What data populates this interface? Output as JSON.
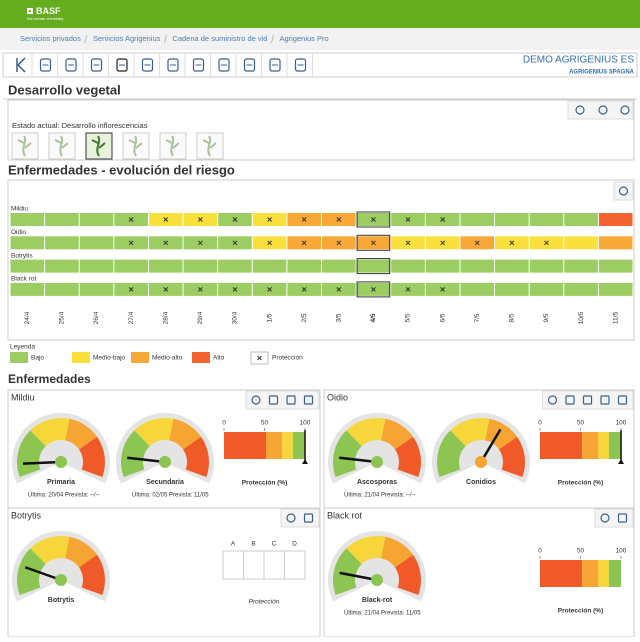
{
  "header": {
    "logo": "BASF",
    "tagline": "We create chemistry"
  },
  "breadcrumb": [
    "Servicios privados",
    "Servicios Agrigenius",
    "Cadena de suministro de vid",
    "Agrigenius Pro"
  ],
  "account": {
    "name": "DEMO AGRIGENIUS ES",
    "company": "AGRIGENIUS SPAGNA"
  },
  "development": {
    "title": "Desarrollo vegetal",
    "current_stage": "Estado actual: Desarrollo inflorescencias"
  },
  "risk": {
    "title": "Enfermedades - evolución del riesgo",
    "dates": [
      "24/4",
      "25/4",
      "26/4",
      "27/4",
      "28/4",
      "29/4",
      "30/4",
      "1/5",
      "2/5",
      "3/5",
      "4/5",
      "5/5",
      "6/5",
      "7/5",
      "8/5",
      "9/5",
      "10/5",
      "11/5"
    ],
    "today_index": 10,
    "legend_title": "Leyenda",
    "levels": [
      {
        "label": "Bajo",
        "color": "#9ccd62"
      },
      {
        "label": "Medio-bajo",
        "color": "#f9e03c"
      },
      {
        "label": "Medio-alto",
        "color": "#f8a837"
      },
      {
        "label": "Alto",
        "color": "#f26330"
      }
    ],
    "protection_label": "Protección",
    "rows": [
      {
        "name": "Mildiu",
        "levels": [
          0,
          0,
          0,
          0,
          1,
          1,
          0,
          1,
          2,
          2,
          0,
          0,
          0,
          0,
          0,
          0,
          0,
          3
        ],
        "protection": [
          0,
          0,
          0,
          1,
          1,
          1,
          1,
          1,
          1,
          1,
          1,
          1,
          1,
          0,
          0,
          0,
          0,
          0
        ]
      },
      {
        "name": "Oidio",
        "levels": [
          0,
          0,
          0,
          0,
          0,
          0,
          0,
          1,
          2,
          2,
          2,
          1,
          1,
          2,
          1,
          1,
          1,
          2
        ],
        "protection": [
          0,
          0,
          0,
          1,
          1,
          1,
          1,
          1,
          1,
          1,
          1,
          1,
          1,
          1,
          1,
          1,
          0,
          0
        ]
      },
      {
        "name": "Botrytis",
        "levels": [
          0,
          0,
          0,
          0,
          0,
          0,
          0,
          0,
          0,
          0,
          0,
          0,
          0,
          0,
          0,
          0,
          0,
          0
        ],
        "protection": [
          0,
          0,
          0,
          0,
          0,
          0,
          0,
          0,
          0,
          0,
          0,
          0,
          0,
          0,
          0,
          0,
          0,
          0
        ]
      },
      {
        "name": "Black rot",
        "levels": [
          0,
          0,
          0,
          0,
          0,
          0,
          0,
          0,
          0,
          0,
          0,
          0,
          0,
          0,
          0,
          0,
          0,
          0
        ],
        "protection": [
          0,
          0,
          0,
          1,
          1,
          1,
          1,
          1,
          1,
          1,
          1,
          1,
          1,
          0,
          0,
          0,
          0,
          0
        ]
      }
    ]
  },
  "diseases": {
    "title": "Enfermedades",
    "gauge_scale": [
      0,
      30,
      55,
      75,
      100
    ],
    "gauge_colors": [
      "#8cc552",
      "#f6d63a",
      "#f6a532",
      "#f05a28"
    ],
    "protection_scale": [
      0,
      52,
      72,
      85,
      100
    ],
    "protection_colors": [
      "#f05a28",
      "#f6a532",
      "#f6d63a",
      "#8cc552"
    ],
    "panels": [
      {
        "name": "Mildiu",
        "gauges": [
          {
            "label": "Primaria",
            "value": 8,
            "info": "Última: 20/04 Prevista: --/--"
          },
          {
            "label": "Secundaria",
            "value": 12,
            "info": "Última: 02/05 Prevista: 11/05"
          }
        ],
        "protection_label": "Protección (%)",
        "protection_ticks": [
          0,
          50,
          100
        ],
        "protection": 100
      },
      {
        "name": "Oidio",
        "gauges": [
          {
            "label": "Ascosporas",
            "value": 12,
            "info": "Última: 21/04 Prevista: --/--"
          },
          {
            "label": "Conidios",
            "value": 64
          }
        ],
        "protection_label": "Protección (%)",
        "protection_ticks": [
          0,
          50,
          100
        ],
        "protection": 100
      },
      {
        "name": "Botrytis",
        "gauges": [
          {
            "label": "Botrytis",
            "value": 18
          }
        ],
        "table_headers": [
          "A",
          "B",
          "C",
          "D"
        ],
        "protection_label": "Protección"
      },
      {
        "name": "Black rot",
        "gauges": [
          {
            "label": "Black-rot",
            "value": 14,
            "info": "Última: 21/04 Prevista: 11/05"
          }
        ],
        "protection_label": "Protección (%)",
        "protection_ticks": [
          0,
          50,
          100
        ]
      }
    ]
  }
}
